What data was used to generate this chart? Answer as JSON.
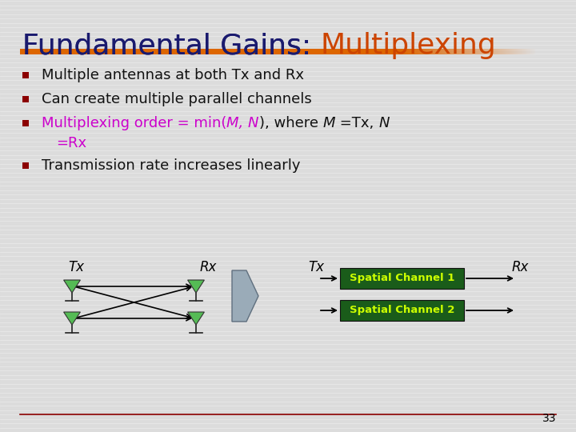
{
  "title_black": "Fundamental Gains: ",
  "title_orange": "Multiplexing",
  "title_fontsize": 26,
  "title_black_color": "#1a1a6e",
  "title_orange_color": "#cc4400",
  "bg_color": "#dcdcdc",
  "bullet_color": "#8b0000",
  "bullet1": "Multiple antennas at both Tx and Rx",
  "bullet2": "Can create multiple parallel channels",
  "bullet3_line1_purple": "Multiplexing order = min(",
  "bullet3_line1_purpleitalic": "M, N",
  "bullet3_line1_black": "), where ",
  "bullet3_line1_blackitalic_M": "M",
  "bullet3_line1_black2": " =Tx, ",
  "bullet3_line1_blackitalic_N": "N",
  "bullet3_line2": "=Rx",
  "bullet4": "Transmission rate increases linearly",
  "text_color": "#111111",
  "purple_color": "#cc00cc",
  "label_Tx": "Tx",
  "label_Rx": "Rx",
  "antenna_green": "#55bb55",
  "channel_green": "#1a5c1a",
  "channel_yellow": "#ccff00",
  "page_num": "33",
  "bottom_line_color": "#8b0000",
  "separator_orange": "#dd6600",
  "stripe_color": "#ffffff",
  "stripe_alpha": 0.45
}
